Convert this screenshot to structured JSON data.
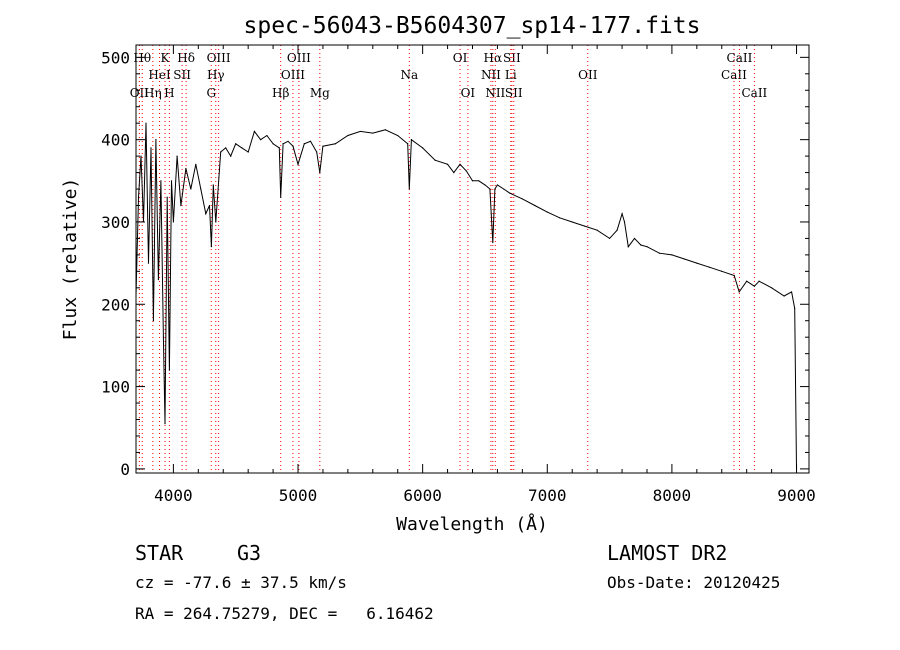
{
  "chart_data": {
    "type": "line",
    "title": "spec-56043-B5604307_sp14-177.fits",
    "xlabel": "Wavelength (Å)",
    "ylabel": "Flux (relative)",
    "xlim": [
      3700,
      9100
    ],
    "ylim": [
      -5,
      515
    ],
    "xticks": [
      4000,
      5000,
      6000,
      7000,
      8000,
      9000
    ],
    "yticks": [
      0,
      100,
      200,
      300,
      400,
      500
    ],
    "grid": false,
    "line_color": "#000000",
    "marker_color": "#ff0000",
    "series": [
      {
        "x": [
          3700,
          3720,
          3740,
          3760,
          3780,
          3800,
          3820,
          3840,
          3860,
          3880,
          3900,
          3920,
          3933,
          3950,
          3968,
          3985,
          4000,
          4030,
          4060,
          4100,
          4140,
          4180,
          4220,
          4260,
          4290,
          4305,
          4320,
          4340,
          4380,
          4420,
          4460,
          4500,
          4550,
          4600,
          4650,
          4700,
          4750,
          4800,
          4850,
          4861,
          4880,
          4920,
          4960,
          5000,
          5050,
          5100,
          5150,
          5175,
          5200,
          5300,
          5400,
          5500,
          5600,
          5700,
          5800,
          5880,
          5893,
          5910,
          6000,
          6100,
          6200,
          6250,
          6300,
          6350,
          6400,
          6450,
          6500,
          6540,
          6563,
          6580,
          6600,
          6650,
          6700,
          6800,
          6900,
          7000,
          7100,
          7200,
          7300,
          7400,
          7500,
          7560,
          7600,
          7620,
          7650,
          7700,
          7750,
          7800,
          7900,
          8000,
          8100,
          8200,
          8300,
          8400,
          8500,
          8540,
          8600,
          8662,
          8700,
          8800,
          8900,
          8960,
          8985,
          9000
        ],
        "y": [
          210,
          330,
          380,
          300,
          420,
          250,
          390,
          180,
          400,
          230,
          350,
          160,
          55,
          330,
          120,
          350,
          300,
          380,
          320,
          365,
          340,
          370,
          340,
          310,
          320,
          270,
          345,
          300,
          385,
          390,
          380,
          395,
          390,
          385,
          410,
          400,
          405,
          395,
          390,
          330,
          395,
          398,
          392,
          370,
          395,
          398,
          385,
          360,
          392,
          395,
          405,
          410,
          408,
          412,
          405,
          395,
          340,
          400,
          390,
          375,
          370,
          360,
          370,
          362,
          350,
          350,
          345,
          340,
          275,
          340,
          345,
          340,
          335,
          328,
          320,
          312,
          305,
          300,
          295,
          290,
          280,
          290,
          310,
          300,
          270,
          280,
          272,
          270,
          262,
          260,
          255,
          250,
          245,
          240,
          235,
          215,
          228,
          222,
          228,
          220,
          210,
          215,
          195,
          0
        ]
      }
    ],
    "line_markers": [
      {
        "label": "OII",
        "x": 3727,
        "row": 3
      },
      {
        "label": "Hθ",
        "x": 3750,
        "row": 1
      },
      {
        "label": "Hη",
        "x": 3835,
        "row": 3
      },
      {
        "label": "HeI",
        "x": 3889,
        "row": 2
      },
      {
        "label": "K",
        "x": 3933,
        "row": 1
      },
      {
        "label": "H",
        "x": 3968,
        "row": 3
      },
      {
        "label": "SII",
        "x": 4070,
        "row": 2
      },
      {
        "label": "Hδ",
        "x": 4102,
        "row": 1
      },
      {
        "label": "Hγ",
        "x": 4340,
        "row": 2
      },
      {
        "label": "G",
        "x": 4304,
        "row": 3
      },
      {
        "label": "OIII",
        "x": 4363,
        "row": 1
      },
      {
        "label": "Hβ",
        "x": 4861,
        "row": 3
      },
      {
        "label": "OIII",
        "x": 4959,
        "row": 2
      },
      {
        "label": "OIII",
        "x": 5007,
        "row": 1
      },
      {
        "label": "Mg",
        "x": 5175,
        "row": 3
      },
      {
        "label": "Na",
        "x": 5893,
        "row": 2
      },
      {
        "label": "OI",
        "x": 6300,
        "row": 1
      },
      {
        "label": "OI",
        "x": 6363,
        "row": 3
      },
      {
        "label": "NII",
        "x": 6548,
        "row": 2
      },
      {
        "label": "Hα",
        "x": 6563,
        "row": 1
      },
      {
        "label": "NII",
        "x": 6583,
        "row": 3
      },
      {
        "label": "Li",
        "x": 6707,
        "row": 2
      },
      {
        "label": "SII",
        "x": 6716,
        "row": 1
      },
      {
        "label": "SII",
        "x": 6731,
        "row": 3
      },
      {
        "label": "OII",
        "x": 7325,
        "row": 2
      },
      {
        "label": "CaII",
        "x": 8498,
        "row": 2
      },
      {
        "label": "CaII",
        "x": 8542,
        "row": 1
      },
      {
        "label": "CaII",
        "x": 8662,
        "row": 3
      }
    ]
  },
  "info": {
    "class": "STAR",
    "subclass": "G3",
    "survey": "LAMOST DR2",
    "redshift": "cz = -77.6 ± 37.5 km/s",
    "obs_date": "Obs-Date: 20120425",
    "coords": "RA = 264.75279, DEC =   6.16462"
  }
}
